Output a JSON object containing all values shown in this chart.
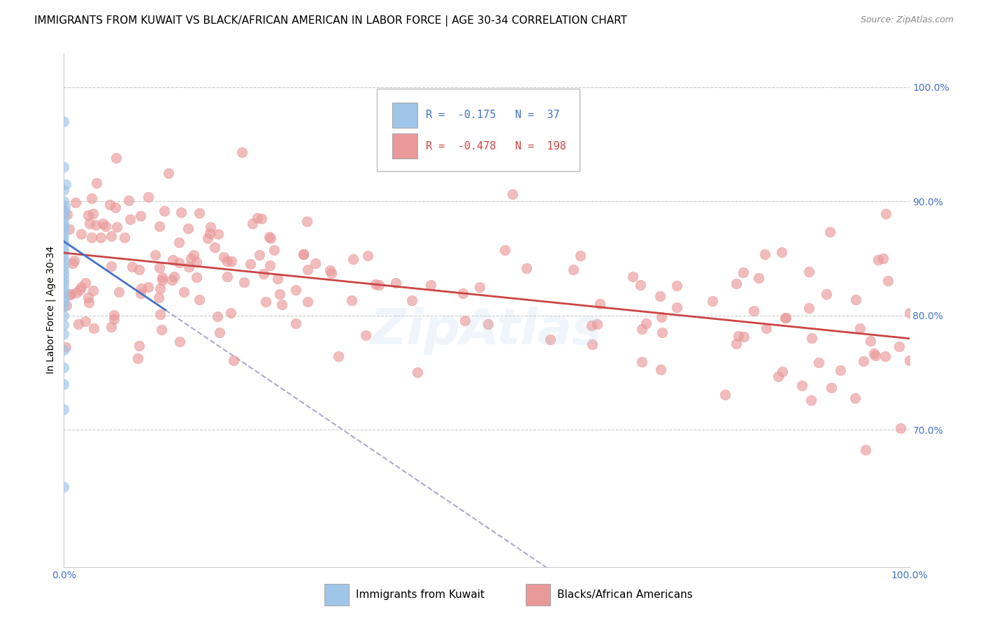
{
  "title": "IMMIGRANTS FROM KUWAIT VS BLACK/AFRICAN AMERICAN IN LABOR FORCE | AGE 30-34 CORRELATION CHART",
  "source": "Source: ZipAtlas.com",
  "ylabel": "In Labor Force | Age 30-34",
  "x_tick_labels": [
    "0.0%",
    "100.0%"
  ],
  "y_tick_labels": [
    "100.0%",
    "90.0%",
    "80.0%",
    "70.0%"
  ],
  "y_tick_values": [
    1.0,
    0.9,
    0.8,
    0.7
  ],
  "y_tick_color": "#4472c4",
  "x_tick_color": "#4472c4",
  "legend_r1_val": "-0.175",
  "legend_n1_val": "37",
  "legend_r2_val": "-0.478",
  "legend_n2_val": "198",
  "blue_color": "#9fc5e8",
  "pink_color": "#ea9999",
  "trendline_blue": "#4472c4",
  "trendline_pink": "#cc4444",
  "trendline_gray": "#aaaacc",
  "watermark": "ZipAtlas",
  "background_color": "#ffffff",
  "grid_color": "#cccccc",
  "xlim": [
    0.0,
    1.0
  ],
  "ylim": [
    0.58,
    1.03
  ],
  "title_fontsize": 11,
  "label_fontsize": 10,
  "tick_fontsize": 10,
  "legend_fontsize": 11,
  "blue_r": -0.175,
  "pink_r": -0.478,
  "pink_intercept": 0.855,
  "pink_slope": -0.075,
  "blue_intercept": 0.865,
  "blue_slope": -0.5
}
